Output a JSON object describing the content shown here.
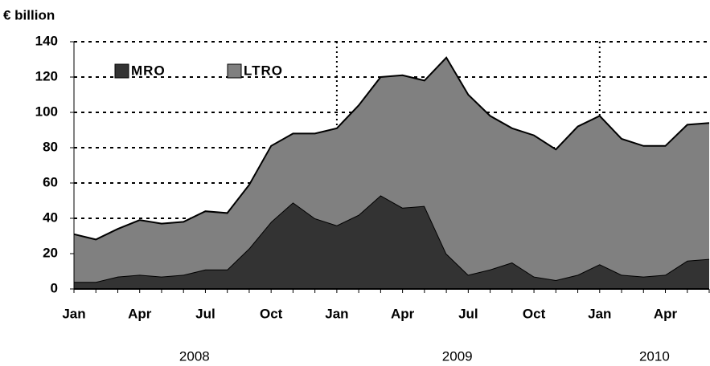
{
  "chart_data": {
    "type": "stacked_area",
    "title": "€ billion",
    "categories": [
      "Jan",
      null,
      null,
      "Apr",
      null,
      null,
      "Jul",
      null,
      null,
      "Oct",
      null,
      null,
      "Jan",
      null,
      null,
      "Apr",
      null,
      null,
      "Jul",
      null,
      null,
      "Oct",
      null,
      null,
      "Jan",
      null,
      null,
      "Apr",
      null,
      null
    ],
    "years": [
      {
        "label": "2008",
        "from": 0,
        "to": 11
      },
      {
        "label": "2009",
        "from": 12,
        "to": 23
      },
      {
        "label": "2010",
        "from": 24,
        "to": 29
      }
    ],
    "series": [
      {
        "name": "MRO",
        "color": "#333333",
        "values": [
          4,
          4,
          7,
          8,
          7,
          8,
          11,
          11,
          23,
          38,
          49,
          40,
          36,
          42,
          53,
          46,
          47,
          20,
          8,
          11,
          15,
          7,
          5,
          8,
          14,
          8,
          7,
          8,
          16,
          17
        ]
      },
      {
        "name": "LTRO",
        "color": "#808080",
        "values": [
          27,
          24,
          27,
          31,
          30,
          30,
          33,
          32,
          36,
          43,
          39,
          48,
          55,
          62,
          67,
          75,
          71,
          111,
          102,
          87,
          76,
          80,
          74,
          84,
          84,
          77,
          74,
          73,
          77,
          77
        ]
      }
    ],
    "ylim": [
      0,
      140
    ],
    "yticks": [
      0,
      20,
      40,
      60,
      80,
      100,
      120,
      140
    ],
    "grid": true
  }
}
